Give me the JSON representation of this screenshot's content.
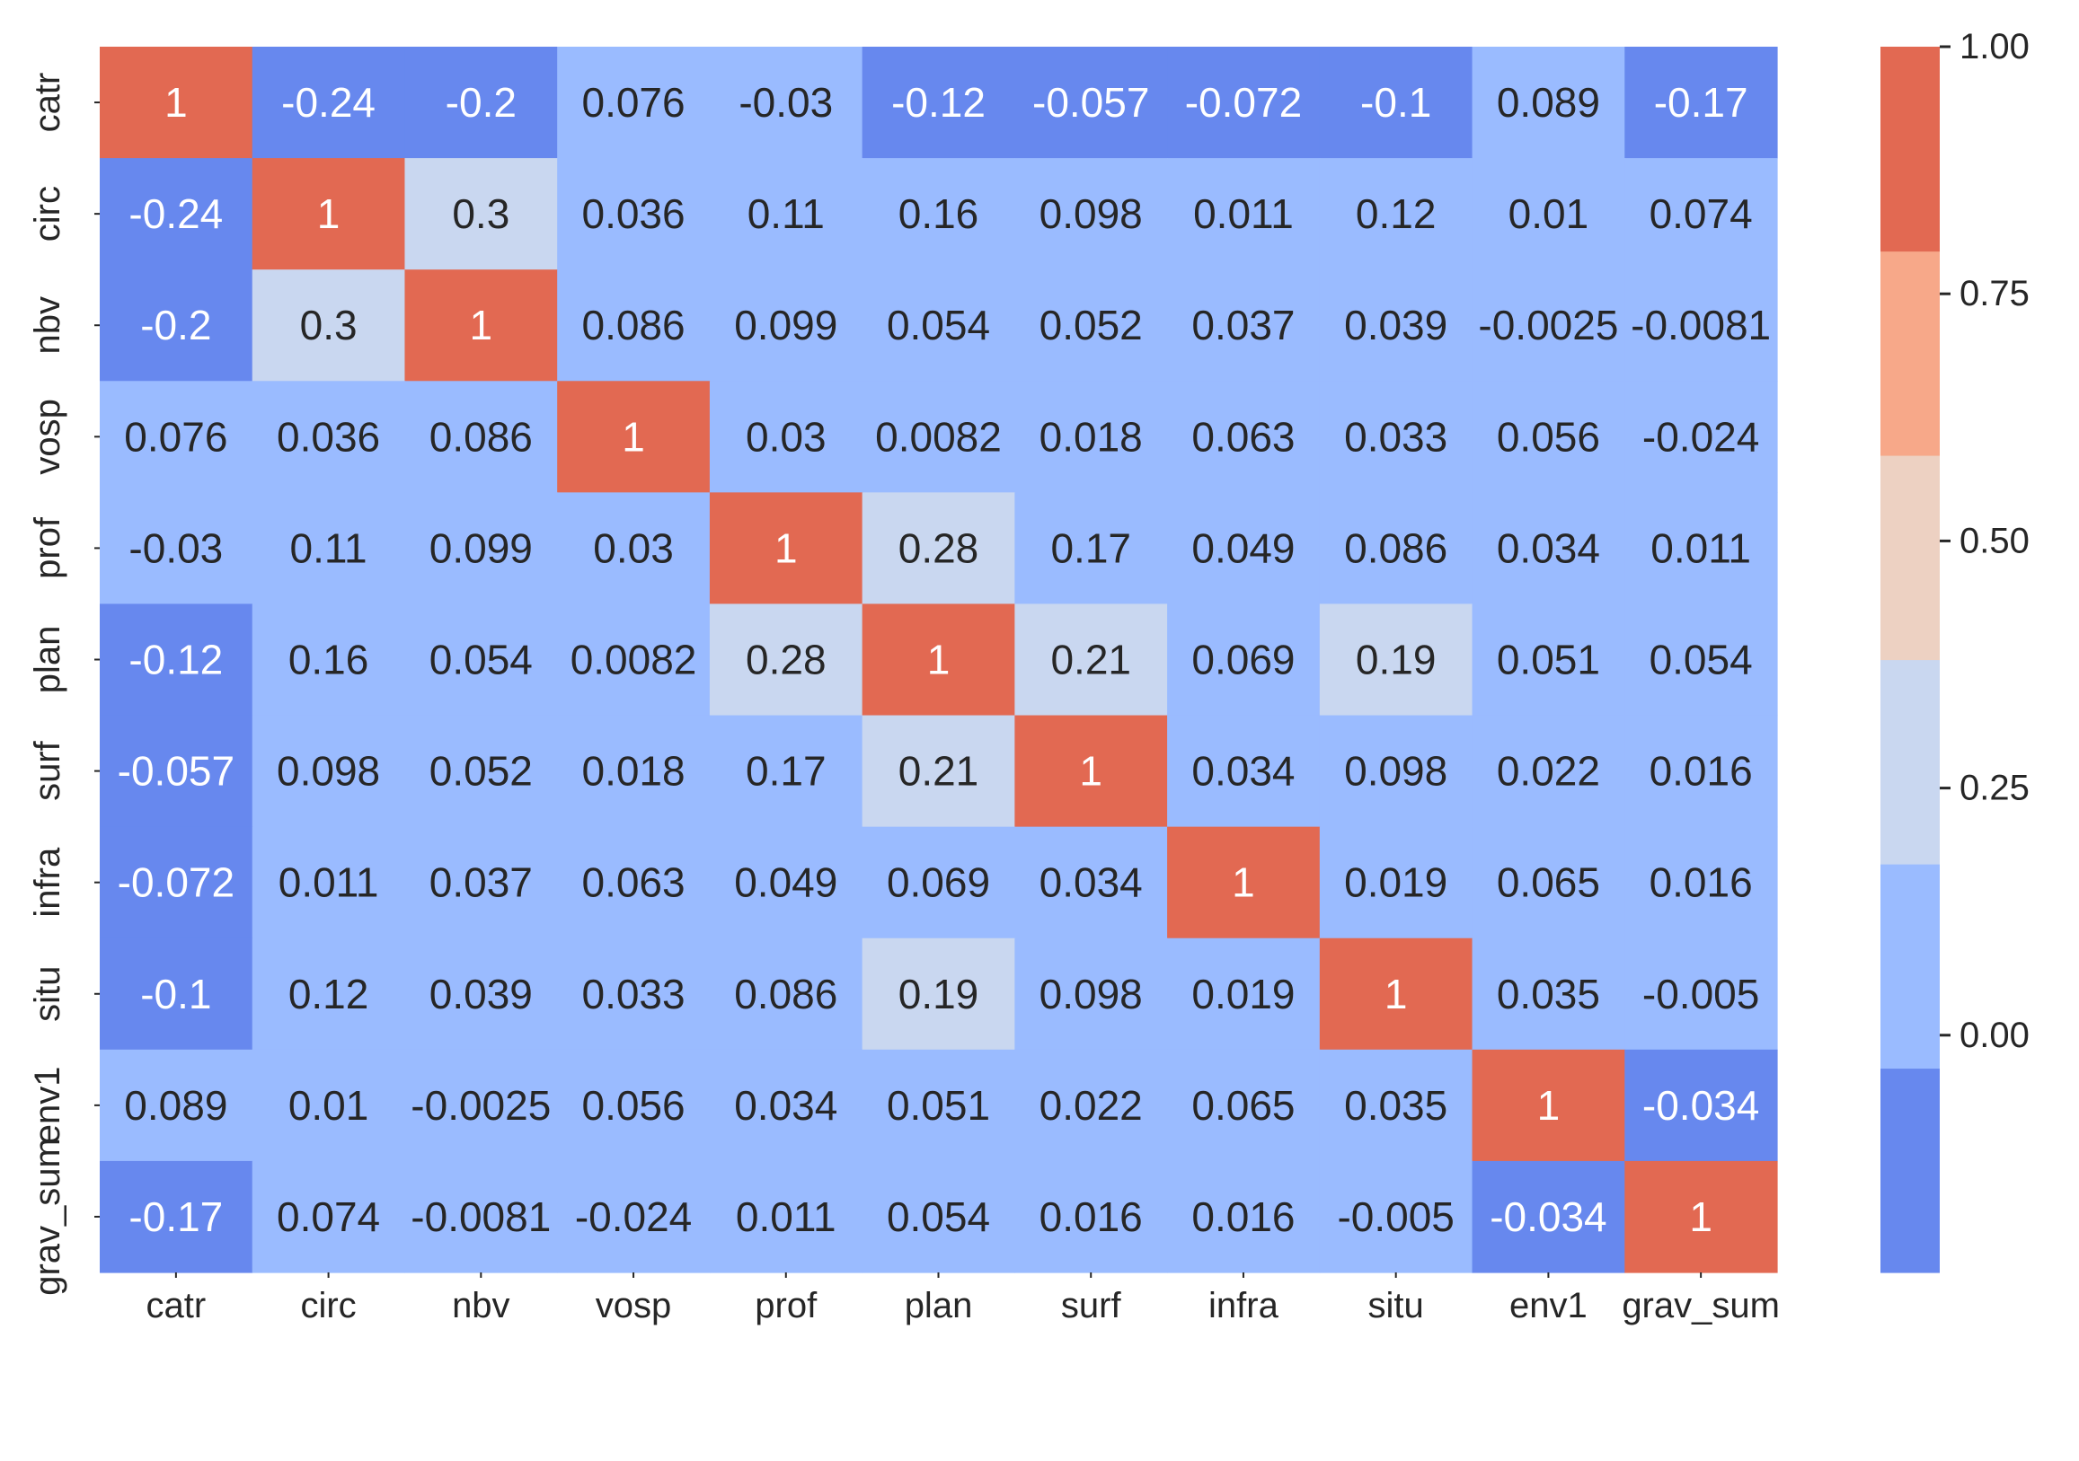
{
  "chart_data": {
    "type": "heatmap",
    "title": "",
    "xlabel": "",
    "ylabel": "",
    "x_categories": [
      "catr",
      "circ",
      "nbv",
      "vosp",
      "prof",
      "plan",
      "surf",
      "infra",
      "situ",
      "env1",
      "grav_sum"
    ],
    "y_categories": [
      "catr",
      "circ",
      "nbv",
      "vosp",
      "prof",
      "plan",
      "surf",
      "infra",
      "situ",
      "env1",
      "grav_sum"
    ],
    "values": [
      [
        1,
        -0.24,
        -0.2,
        0.076,
        -0.03,
        -0.12,
        -0.057,
        -0.072,
        -0.1,
        0.089,
        -0.17
      ],
      [
        -0.24,
        1,
        0.3,
        0.036,
        0.11,
        0.16,
        0.098,
        0.011,
        0.12,
        0.01,
        0.074
      ],
      [
        -0.2,
        0.3,
        1,
        0.086,
        0.099,
        0.054,
        0.052,
        0.037,
        0.039,
        -0.0025,
        -0.0081
      ],
      [
        0.076,
        0.036,
        0.086,
        1,
        0.03,
        0.0082,
        0.018,
        0.063,
        0.033,
        0.056,
        -0.024
      ],
      [
        -0.03,
        0.11,
        0.099,
        0.03,
        1,
        0.28,
        0.17,
        0.049,
        0.086,
        0.034,
        0.011
      ],
      [
        -0.12,
        0.16,
        0.054,
        0.0082,
        0.28,
        1,
        0.21,
        0.069,
        0.19,
        0.051,
        0.054
      ],
      [
        -0.057,
        0.098,
        0.052,
        0.018,
        0.17,
        0.21,
        1,
        0.034,
        0.098,
        0.022,
        0.016
      ],
      [
        -0.072,
        0.011,
        0.037,
        0.063,
        0.049,
        0.069,
        0.034,
        1,
        0.019,
        0.065,
        0.016
      ],
      [
        -0.1,
        0.12,
        0.039,
        0.033,
        0.086,
        0.19,
        0.098,
        0.019,
        1,
        0.035,
        -0.005
      ],
      [
        0.089,
        0.01,
        -0.0025,
        0.056,
        0.034,
        0.051,
        0.022,
        0.065,
        0.035,
        1,
        -0.034
      ],
      [
        -0.17,
        0.074,
        -0.0081,
        -0.024,
        0.011,
        0.054,
        0.016,
        0.016,
        -0.005,
        -0.034,
        1
      ]
    ],
    "annotations": [
      [
        "1",
        "-0.24",
        "-0.2",
        "0.076",
        "-0.03",
        "-0.12",
        "-0.057",
        "-0.072",
        "-0.1",
        "0.089",
        "-0.17"
      ],
      [
        "-0.24",
        "1",
        "0.3",
        "0.036",
        "0.11",
        "0.16",
        "0.098",
        "0.011",
        "0.12",
        "0.01",
        "0.074"
      ],
      [
        "-0.2",
        "0.3",
        "1",
        "0.086",
        "0.099",
        "0.054",
        "0.052",
        "0.037",
        "0.039",
        "-0.0025",
        "-0.0081"
      ],
      [
        "0.076",
        "0.036",
        "0.086",
        "1",
        "0.03",
        "0.0082",
        "0.018",
        "0.063",
        "0.033",
        "0.056",
        "-0.024"
      ],
      [
        "-0.03",
        "0.11",
        "0.099",
        "0.03",
        "1",
        "0.28",
        "0.17",
        "0.049",
        "0.086",
        "0.034",
        "0.011"
      ],
      [
        "-0.12",
        "0.16",
        "0.054",
        "0.0082",
        "0.28",
        "1",
        "0.21",
        "0.069",
        "0.19",
        "0.051",
        "0.054"
      ],
      [
        "-0.057",
        "0.098",
        "0.052",
        "0.018",
        "0.17",
        "0.21",
        "1",
        "0.034",
        "0.098",
        "0.022",
        "0.016"
      ],
      [
        "-0.072",
        "0.011",
        "0.037",
        "0.063",
        "0.049",
        "0.069",
        "0.034",
        "1",
        "0.019",
        "0.065",
        "0.016"
      ],
      [
        "-0.1",
        "0.12",
        "0.039",
        "0.033",
        "0.086",
        "0.19",
        "0.098",
        "0.019",
        "1",
        "0.035",
        "-0.005"
      ],
      [
        "0.089",
        "0.01",
        "-0.0025",
        "0.056",
        "0.034",
        "0.051",
        "0.022",
        "0.065",
        "0.035",
        "1",
        "-0.034"
      ],
      [
        "-0.17",
        "0.074",
        "-0.0081",
        "-0.024",
        "0.011",
        "0.054",
        "0.016",
        "0.016",
        "-0.005",
        "-0.034",
        "1"
      ]
    ],
    "colorbar": {
      "range": [
        -0.24,
        1.0
      ],
      "ticks": [
        0.0,
        0.25,
        0.5,
        0.75,
        1.0
      ],
      "tick_labels": [
        "0.00",
        "0.25",
        "0.50",
        "0.75",
        "1.00"
      ],
      "bins": [
        {
          "from": -0.24,
          "to": -0.0333,
          "color": "#6788ee"
        },
        {
          "from": -0.0333,
          "to": 0.1733,
          "color": "#9abbff"
        },
        {
          "from": 0.1733,
          "to": 0.38,
          "color": "#c9d7f0"
        },
        {
          "from": 0.38,
          "to": 0.5867,
          "color": "#edd1c2"
        },
        {
          "from": 0.5867,
          "to": 0.7933,
          "color": "#f7a889"
        },
        {
          "from": 0.7933,
          "to": 1.0,
          "color": "#e26952"
        }
      ]
    },
    "grid": false,
    "colors": {
      "annotation_dark": "#262626",
      "annotation_light": "#ffffff",
      "tick_text": "#262626"
    }
  }
}
